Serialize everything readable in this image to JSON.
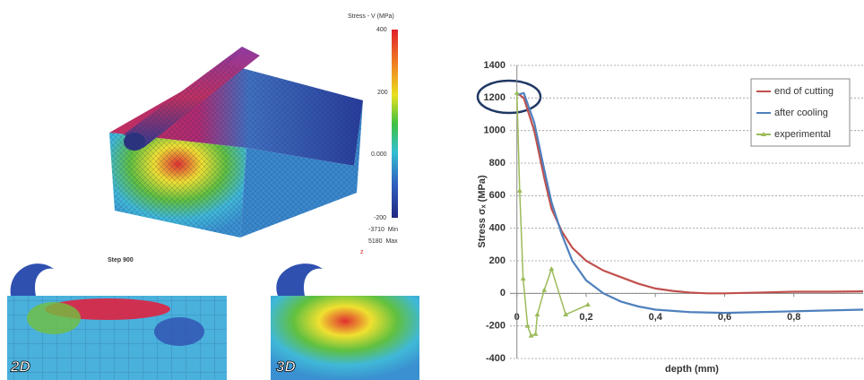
{
  "fem": {
    "colorbar_title": "Stress - V (MPa)",
    "colorbar_ticks": [
      "400",
      "200",
      "0.000",
      "-200"
    ],
    "min_label": "-3710  Min",
    "max_label": "5180  Max",
    "axis_marker": "z",
    "step_label": "Step 900",
    "panel_labels": [
      "2D",
      "3D"
    ]
  },
  "chart_data": {
    "type": "line",
    "y_label": "Stress σₓ (MPa)",
    "x_label": "depth (mm)",
    "xlim": [
      -0.02,
      1.0
    ],
    "ylim": [
      -400,
      1400
    ],
    "xticks": [
      0,
      {
        "value": 0.2,
        "label": "0,2"
      },
      {
        "value": 0.4,
        "label": "0,4"
      },
      {
        "value": 0.6,
        "label": "0,6"
      },
      {
        "value": 0.8,
        "label": "0,8"
      }
    ],
    "yticks": [
      -400,
      -200,
      0,
      200,
      400,
      600,
      800,
      1000,
      1200,
      1400
    ],
    "grid": true,
    "legend": "upper right",
    "series": [
      {
        "name": "end of cutting",
        "color": "#c0504d",
        "x": [
          0,
          0.02,
          0.05,
          0.08,
          0.1,
          0.13,
          0.16,
          0.2,
          0.25,
          0.3,
          0.35,
          0.4,
          0.45,
          0.5,
          0.55,
          0.6,
          0.7,
          0.8,
          0.9,
          1.0
        ],
        "values": [
          1230,
          1200,
          1000,
          700,
          520,
          380,
          280,
          200,
          140,
          100,
          60,
          30,
          15,
          5,
          0,
          0,
          5,
          10,
          10,
          12
        ]
      },
      {
        "name": "after cooling",
        "color": "#4f81bd",
        "x": [
          0,
          0.02,
          0.05,
          0.08,
          0.1,
          0.13,
          0.16,
          0.2,
          0.25,
          0.3,
          0.35,
          0.4,
          0.5,
          0.6,
          0.7,
          0.8,
          0.9,
          1.0
        ],
        "values": [
          1220,
          1230,
          1050,
          750,
          560,
          360,
          200,
          80,
          0,
          -50,
          -80,
          -100,
          -115,
          -120,
          -115,
          -110,
          -105,
          -100
        ]
      },
      {
        "name": "experimental",
        "color": "#9bbb59",
        "marker": true,
        "x": [
          0,
          0.008,
          0.018,
          0.031,
          0.041,
          0.054,
          0.059,
          0.079,
          0.1,
          0.141,
          0.205
        ],
        "values": [
          1230,
          630,
          90,
          -200,
          -260,
          -250,
          -130,
          20,
          150,
          -130,
          -70
        ]
      }
    ]
  }
}
